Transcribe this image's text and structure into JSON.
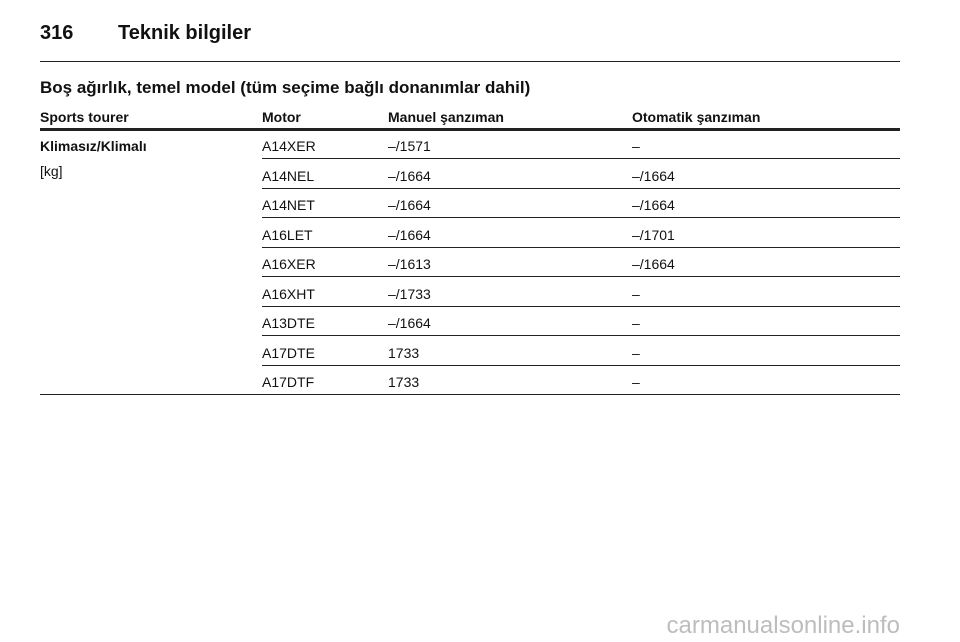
{
  "header": {
    "page_number": "316",
    "title": "Teknik bilgiler"
  },
  "section_title": "Boş ağırlık, temel model (tüm seçime bağlı donanımlar dahil)",
  "table": {
    "columns": [
      "Sports tourer",
      "Motor",
      "Manuel şanzıman",
      "Otomatik şanzıman"
    ],
    "row_label": "Klimasız/Klimalı",
    "unit": "[kg]",
    "rows": [
      [
        "A14XER",
        "–/1571",
        "–"
      ],
      [
        "A14NEL",
        "–/1664",
        "–/1664"
      ],
      [
        "A14NET",
        "–/1664",
        "–/1664"
      ],
      [
        "A16LET",
        "–/1664",
        "–/1701"
      ],
      [
        "A16XER",
        "–/1613",
        "–/1664"
      ],
      [
        "A16XHT",
        "–/1733",
        "–"
      ],
      [
        "A13DTE",
        "–/1664",
        "–"
      ],
      [
        "A17DTE",
        "1733",
        "–"
      ],
      [
        "A17DTF",
        "1733",
        "–"
      ]
    ]
  },
  "watermark": "carmanualsonline.info"
}
